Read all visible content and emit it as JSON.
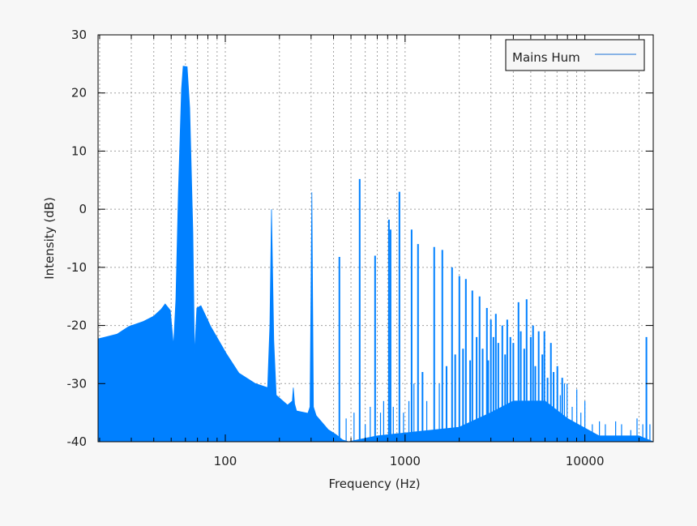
{
  "chart_data": {
    "type": "area",
    "title": "",
    "xlabel": "Frequency (Hz)",
    "ylabel": "Intensity (dB)",
    "xscale": "log",
    "xlim": [
      19.6,
      24000
    ],
    "ylim": [
      -40,
      30
    ],
    "xticks": [
      100,
      1000,
      10000
    ],
    "xtick_labels": [
      "100",
      "1000",
      "10000"
    ],
    "yticks": [
      -40,
      -30,
      -20,
      -10,
      0,
      10,
      20,
      30
    ],
    "ytick_labels": [
      "-40",
      "-30",
      "-20",
      "-10",
      "0",
      "10",
      "20",
      "30"
    ],
    "grid": true,
    "legend": {
      "position": "top-right",
      "entries": [
        "Mains Hum"
      ]
    },
    "colors": {
      "fill": "#0080ff",
      "line": "#1a6fd6",
      "grid": "#a0a0a0",
      "background": "#f7f7f7",
      "plot_background": "#ffffff"
    },
    "series": [
      {
        "name": "Mains Hum",
        "envelope": [
          [
            19.6,
            -22.3
          ],
          [
            25,
            -21.5
          ],
          [
            29,
            -20.2
          ],
          [
            35,
            -19.3
          ],
          [
            40,
            -18.4
          ],
          [
            44,
            -17.2
          ],
          [
            46.3,
            -16.3
          ],
          [
            49.4,
            -17.4
          ],
          [
            51.5,
            -23.5
          ],
          [
            53.1,
            -15.6
          ],
          [
            54.8,
            3
          ],
          [
            57.1,
            20.7
          ],
          [
            58.3,
            24.6
          ],
          [
            61.3,
            24.5
          ],
          [
            63.4,
            17.4
          ],
          [
            66,
            -4
          ],
          [
            67.4,
            -25
          ],
          [
            69.5,
            -17
          ],
          [
            73.2,
            -16.6
          ],
          [
            83,
            -20.2
          ],
          [
            102,
            -25
          ],
          [
            119,
            -28.2
          ],
          [
            147,
            -30
          ],
          [
            172,
            -30.7
          ],
          [
            177,
            -20
          ],
          [
            180.7,
            0
          ],
          [
            186,
            -22.6
          ],
          [
            192,
            -32
          ],
          [
            222,
            -33.7
          ],
          [
            236,
            -33
          ],
          [
            239,
            -30.7
          ],
          [
            243,
            -33.5
          ],
          [
            249,
            -34.7
          ],
          [
            288,
            -35.1
          ],
          [
            296,
            -34
          ],
          [
            303,
            2.9
          ],
          [
            309,
            -34
          ],
          [
            320,
            -35.5
          ],
          [
            373,
            -37.9
          ],
          [
            414,
            -38.8
          ],
          [
            449,
            -39.7
          ],
          [
            484,
            -40
          ],
          [
            700,
            -39
          ],
          [
            1000,
            -38.5
          ],
          [
            2000,
            -37.5
          ],
          [
            3000,
            -35
          ],
          [
            4000,
            -33
          ],
          [
            6000,
            -33
          ],
          [
            8000,
            -36
          ],
          [
            12000,
            -39
          ],
          [
            20000,
            -39
          ],
          [
            24000,
            -40
          ]
        ],
        "peaks": [
          [
            431,
            -8.2
          ],
          [
            559,
            5.2
          ],
          [
            681,
            -8
          ],
          [
            813,
            -1.8
          ],
          [
            830,
            -3.5
          ],
          [
            930,
            3
          ],
          [
            1087,
            -3.5
          ],
          [
            1180,
            -6
          ],
          [
            1452,
            -6.5
          ],
          [
            1611,
            -7
          ],
          [
            1825,
            -10
          ],
          [
            2004,
            -11.5
          ],
          [
            2178,
            -12
          ],
          [
            2366,
            -14
          ],
          [
            2596,
            -15
          ],
          [
            2851,
            -17
          ],
          [
            3197,
            -18
          ],
          [
            3474,
            -20
          ],
          [
            3852,
            -22
          ],
          [
            4273,
            -16
          ],
          [
            4742,
            -15.5
          ],
          [
            5149,
            -20
          ],
          [
            5534,
            -21
          ],
          [
            5952,
            -21
          ],
          [
            6471,
            -23
          ],
          [
            7030,
            -27
          ],
          [
            7482,
            -29
          ],
          [
            7961,
            -30
          ],
          [
            9016,
            -31
          ],
          [
            10000,
            -33
          ],
          [
            12050,
            -36.5
          ],
          [
            14830,
            -36.5
          ],
          [
            21990,
            -22
          ],
          [
            470,
            -36
          ],
          [
            520,
            -35
          ],
          [
            600,
            -37
          ],
          [
            640,
            -34
          ],
          [
            730,
            -35
          ],
          [
            760,
            -33
          ],
          [
            860,
            -34
          ],
          [
            980,
            -35
          ],
          [
            1050,
            -33
          ],
          [
            1120,
            -30
          ],
          [
            1250,
            -28
          ],
          [
            1320,
            -33
          ],
          [
            1550,
            -30
          ],
          [
            1700,
            -27
          ],
          [
            1900,
            -25
          ],
          [
            2100,
            -24
          ],
          [
            2300,
            -26
          ],
          [
            2500,
            -22
          ],
          [
            2700,
            -24
          ],
          [
            2900,
            -26
          ],
          [
            3000,
            -19
          ],
          [
            3100,
            -22
          ],
          [
            3300,
            -23
          ],
          [
            3600,
            -25
          ],
          [
            3700,
            -19
          ],
          [
            4000,
            -23
          ],
          [
            4400,
            -21
          ],
          [
            4600,
            -24
          ],
          [
            5000,
            -22
          ],
          [
            5300,
            -27
          ],
          [
            5800,
            -25
          ],
          [
            6200,
            -29
          ],
          [
            6700,
            -28
          ],
          [
            7300,
            -32
          ],
          [
            7700,
            -30
          ],
          [
            8500,
            -34
          ],
          [
            9500,
            -35
          ],
          [
            11000,
            -37
          ],
          [
            13000,
            -37
          ],
          [
            16000,
            -37
          ],
          [
            18000,
            -38
          ],
          [
            19500,
            -36
          ],
          [
            21000,
            -37
          ],
          [
            23000,
            -37
          ]
        ]
      }
    ]
  }
}
